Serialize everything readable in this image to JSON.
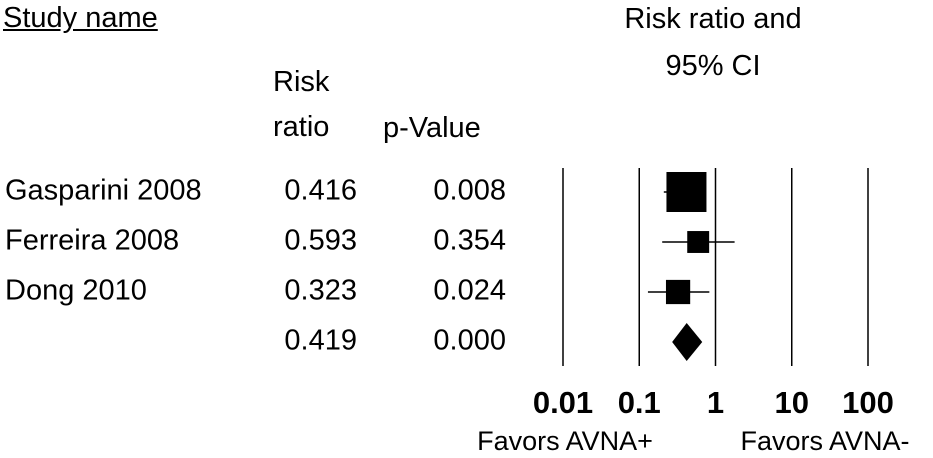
{
  "chart_data": {
    "type": "forest",
    "title": "Risk ratio and 95% CI",
    "study_header": "Study name",
    "ratio_header": "Risk ratio",
    "p_header": "p-Value",
    "categories": [
      "Gasparini 2008",
      "Ferreira 2008",
      "Dong 2010"
    ],
    "values": [
      0.416,
      0.593,
      0.323
    ],
    "p_values": [
      "0.008",
      "0.354",
      "0.024"
    ],
    "ci_low": [
      0.21,
      0.2,
      0.13
    ],
    "ci_high": [
      0.74,
      1.78,
      0.83
    ],
    "weights": [
      60,
      18,
      22
    ],
    "summary": {
      "value": 0.419,
      "p_value": "0.000",
      "ci_low": 0.27,
      "ci_high": 0.67
    },
    "xlim": [
      0.01,
      100
    ],
    "xticks": [
      0.01,
      0.1,
      1,
      10,
      100
    ],
    "log_x": true,
    "grid": true,
    "color": "#000000",
    "x_labels": [
      "Favors AVNA+",
      "Favors AVNA-"
    ]
  }
}
